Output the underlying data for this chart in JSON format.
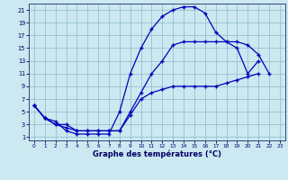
{
  "bg_color": "#cce8f0",
  "grid_color": "#88bbcc",
  "line_color": "#0000bb",
  "xlabel": "Graphe des températures (°C)",
  "xticks": [
    0,
    1,
    2,
    3,
    4,
    5,
    6,
    7,
    8,
    9,
    10,
    11,
    12,
    13,
    14,
    15,
    16,
    17,
    18,
    19,
    20,
    21,
    22,
    23
  ],
  "yticks": [
    1,
    3,
    5,
    7,
    9,
    11,
    13,
    15,
    17,
    19,
    21
  ],
  "xmin": -0.5,
  "xmax": 23.5,
  "ymin": 0.5,
  "ymax": 22.0,
  "line1_x": [
    0,
    1,
    2,
    3,
    4,
    5,
    6,
    7,
    8,
    9,
    10,
    11,
    12,
    13,
    14,
    15,
    16,
    17,
    18,
    19,
    20,
    21
  ],
  "line1_y": [
    6,
    4,
    3.5,
    2,
    1.5,
    1.5,
    1.5,
    1.5,
    5,
    11,
    15,
    18,
    20,
    21,
    21.5,
    21.5,
    20.5,
    17.5,
    16,
    15,
    11,
    13
  ],
  "line2_x": [
    0,
    1,
    2,
    3,
    4,
    5,
    6,
    7,
    8,
    9,
    10,
    11,
    12,
    13,
    14,
    15,
    16,
    17,
    18,
    19,
    20,
    21,
    22
  ],
  "line2_y": [
    6,
    4,
    3,
    2.5,
    2,
    2,
    2,
    2,
    2,
    5,
    8,
    11,
    13,
    15.5,
    16,
    16,
    16,
    16,
    16,
    16,
    15.5,
    14,
    11
  ],
  "line3_x": [
    0,
    1,
    2,
    3,
    4,
    5,
    6,
    7,
    8,
    9,
    10,
    11,
    12,
    13,
    14,
    15,
    16,
    17,
    18,
    19,
    20,
    21,
    22,
    23
  ],
  "line3_y": [
    6,
    4,
    3,
    3,
    2,
    2,
    2,
    2,
    2,
    4.5,
    7,
    8,
    8.5,
    9,
    9,
    9,
    9,
    9,
    9.5,
    10,
    10.5,
    11,
    null,
    null
  ]
}
